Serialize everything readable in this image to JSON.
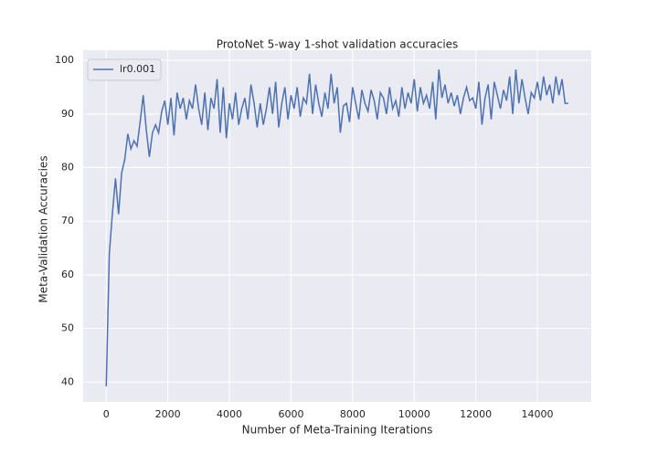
{
  "chart_data": {
    "type": "line",
    "title": "ProtoNet 5-way 1-shot validation accuracies",
    "x_label": "Number of Meta-Training Iterations",
    "y_label": "Meta-Validation Accuracies",
    "x": [
      0,
      100,
      200,
      300,
      400,
      500,
      600,
      700,
      800,
      900,
      1000,
      1100,
      1200,
      1300,
      1400,
      1500,
      1600,
      1700,
      1800,
      1900,
      2000,
      2100,
      2200,
      2300,
      2400,
      2500,
      2600,
      2700,
      2800,
      2900,
      3000,
      3100,
      3200,
      3300,
      3400,
      3500,
      3600,
      3700,
      3800,
      3900,
      4000,
      4100,
      4200,
      4300,
      4400,
      4500,
      4600,
      4700,
      4800,
      4900,
      5000,
      5100,
      5200,
      5300,
      5400,
      5500,
      5600,
      5700,
      5800,
      5900,
      6000,
      6100,
      6200,
      6300,
      6400,
      6500,
      6600,
      6700,
      6800,
      6900,
      7000,
      7100,
      7200,
      7300,
      7400,
      7500,
      7600,
      7700,
      7800,
      7900,
      8000,
      8100,
      8200,
      8300,
      8400,
      8500,
      8600,
      8700,
      8800,
      8900,
      9000,
      9100,
      9200,
      9300,
      9400,
      9500,
      9600,
      9700,
      9800,
      9900,
      10000,
      10100,
      10200,
      10300,
      10400,
      10500,
      10600,
      10700,
      10800,
      10900,
      11000,
      11100,
      11200,
      11300,
      11400,
      11500,
      11600,
      11700,
      11800,
      11900,
      12000,
      12100,
      12200,
      12300,
      12400,
      12500,
      12600,
      12700,
      12800,
      12900,
      13000,
      13100,
      13200,
      13300,
      13400,
      13500,
      13600,
      13700,
      13800,
      13900,
      14000,
      14100,
      14200,
      14300,
      14400,
      14500,
      14600,
      14700,
      14800,
      14900,
      15000
    ],
    "series": [
      {
        "name": "lr0.001",
        "color": "#4c72b0",
        "values": [
          39.2,
          64,
          71.5,
          78,
          71.3,
          79,
          81.5,
          86.3,
          83.5,
          85,
          84,
          88.5,
          93.5,
          87,
          82,
          86.5,
          88,
          86.5,
          90.5,
          92.5,
          88,
          93,
          86,
          94,
          91,
          93,
          89,
          92.5,
          91,
          95.5,
          91,
          88,
          94,
          87,
          93,
          91,
          96.5,
          86.5,
          95,
          85.5,
          92,
          89,
          94,
          88,
          91,
          93,
          89,
          95.5,
          92,
          87.5,
          92,
          88,
          91,
          95,
          90,
          96,
          87.5,
          92,
          95,
          89,
          93.5,
          91,
          95,
          89.5,
          93,
          92,
          97.5,
          90,
          95.5,
          92,
          89.5,
          94,
          91,
          97.5,
          92,
          95,
          86.5,
          91.5,
          92,
          88.5,
          95,
          92,
          89,
          94.5,
          92,
          90.5,
          94.5,
          92.5,
          89,
          94,
          93,
          90,
          95,
          91,
          92.5,
          89.5,
          95,
          91,
          94,
          92,
          96.5,
          90.5,
          95,
          92,
          93.5,
          91,
          96,
          89,
          98.3,
          93,
          95.5,
          92,
          94,
          91.5,
          93.5,
          90,
          93,
          95,
          92.5,
          93,
          91,
          96,
          88,
          93,
          95.5,
          89,
          96,
          93.5,
          91,
          94.5,
          92.5,
          97,
          90,
          98.3,
          92,
          96.5,
          93,
          90,
          94,
          93,
          96,
          92.5,
          97,
          93.5,
          95.5,
          92,
          97,
          93.5,
          96.5,
          92,
          92
        ]
      }
    ],
    "xlim": [
      -750,
      15750
    ],
    "ylim": [
      36.3,
      101.9
    ],
    "xticks": [
      0,
      2000,
      4000,
      6000,
      8000,
      10000,
      12000,
      14000
    ],
    "yticks": [
      40,
      50,
      60,
      70,
      80,
      90,
      100
    ],
    "grid": true,
    "legend": "upper left"
  }
}
